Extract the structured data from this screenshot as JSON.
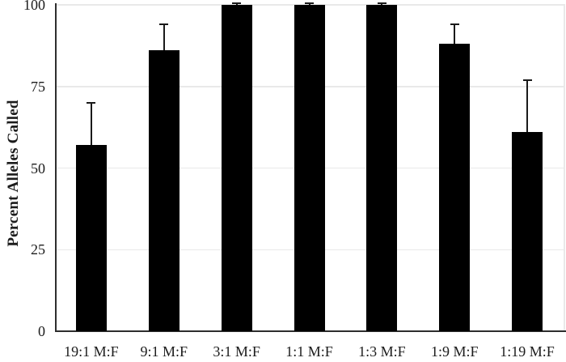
{
  "figure": {
    "background_color": "#ffffff",
    "bar_color": "#000000",
    "error_bar_color": "#1a1a1a",
    "axis_color": "#2e2e2e",
    "gridline_color": "#e9e9e9",
    "text_color": "#1c1c1c"
  },
  "chart_data": {
    "type": "bar",
    "title": "",
    "xlabel": "",
    "ylabel": "Percent Alleles Called",
    "ylim": [
      0,
      100
    ],
    "yticks": [
      0,
      25,
      50,
      75,
      100
    ],
    "ytick_labels": [
      "0",
      "25",
      "50",
      "75",
      "100"
    ],
    "grid": true,
    "legend": "none",
    "categories": [
      "19:1 M:F",
      "9:1 M:F",
      "3:1 M:F",
      "1:1 M:F",
      "1:3 M:F",
      "1:9 M:F",
      "1:19 M:F"
    ],
    "series": [
      {
        "name": "Percent Alleles Called",
        "values": [
          57,
          86,
          100,
          100,
          100,
          88,
          61
        ],
        "error_plus": [
          13,
          8,
          0.5,
          0.5,
          0.5,
          6,
          16
        ],
        "error_minus": [
          0,
          0,
          0,
          0,
          0,
          0,
          0
        ]
      }
    ]
  }
}
